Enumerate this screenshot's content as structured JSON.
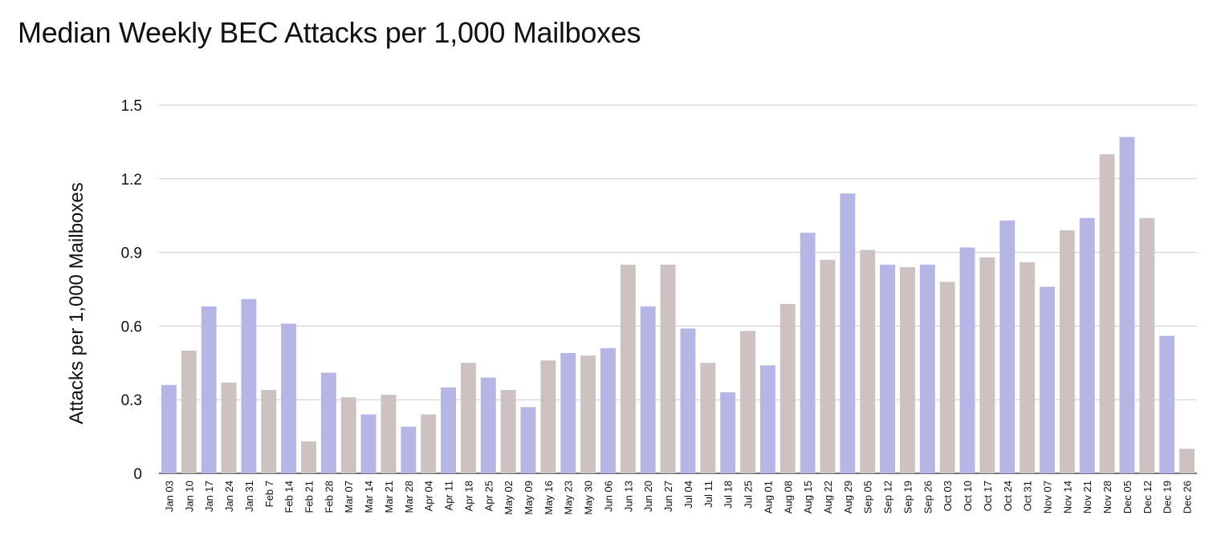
{
  "chart_data": {
    "type": "bar",
    "title": "Median Weekly BEC Attacks per 1,000 Mailboxes",
    "xlabel": "",
    "ylabel": "Attacks per 1,000 Mailboxes",
    "ylim": [
      0,
      1.5
    ],
    "yticks": [
      0,
      0.3,
      0.6,
      0.9,
      1.2,
      1.5
    ],
    "ytick_labels": [
      "0",
      "0.3",
      "0.6",
      "0.9",
      "1.2",
      "1.5"
    ],
    "grid": true,
    "legend": "none",
    "colors": [
      "#b5b5e6",
      "#cdc1c1"
    ],
    "categories": [
      "Jan 03",
      "Jan 10",
      "Jan 17",
      "Jan 24",
      "Jan 31",
      "Feb 7",
      "Feb 14",
      "Feb 21",
      "Feb 28",
      "Mar 07",
      "Mar 14",
      "Mar 21",
      "Mar 28",
      "Apr 04",
      "Apr 11",
      "Apr 18",
      "Apr 25",
      "May 02",
      "May 09",
      "May 16",
      "May 23",
      "May 30",
      "Jun 06",
      "Jun 13",
      "Jun 20",
      "Jun 27",
      "Jul 04",
      "Jul 11",
      "Jul 18",
      "Jul 25",
      "Aug 01",
      "Aug 08",
      "Aug 15",
      "Aug 22",
      "Aug 29",
      "Sep 05",
      "Sep 12",
      "Sep 19",
      "Sep 26",
      "Oct 03",
      "Oct 10",
      "Oct 17",
      "Oct 24",
      "Oct 31",
      "Nov 07",
      "Nov 14",
      "Nov 21",
      "Nov 28",
      "Dec 05",
      "Dec 12",
      "Dec 19",
      "Dec 26"
    ],
    "values": [
      0.36,
      0.5,
      0.68,
      0.37,
      0.71,
      0.34,
      0.61,
      0.13,
      0.41,
      0.31,
      0.24,
      0.32,
      0.19,
      0.24,
      0.35,
      0.45,
      0.39,
      0.34,
      0.27,
      0.46,
      0.49,
      0.48,
      0.51,
      0.85,
      0.68,
      0.85,
      0.59,
      0.45,
      0.33,
      0.58,
      0.44,
      0.69,
      0.98,
      0.87,
      1.14,
      0.91,
      0.85,
      0.84,
      0.85,
      0.78,
      0.92,
      0.88,
      1.03,
      0.86,
      0.76,
      0.99,
      1.04,
      1.3,
      1.37,
      1.04,
      0.56,
      0.1
    ],
    "bar_colors": [
      "#b5b5e6",
      "#cdc1c1",
      "#b5b5e6",
      "#cdc1c1",
      "#b5b5e6",
      "#cdc1c1",
      "#b5b5e6",
      "#cdc1c1",
      "#b5b5e6",
      "#cdc1c1",
      "#b5b5e6",
      "#cdc1c1",
      "#b5b5e6",
      "#cdc1c1",
      "#b5b5e6",
      "#cdc1c1",
      "#b5b5e6",
      "#cdc1c1",
      "#b5b5e6",
      "#cdc1c1",
      "#b5b5e6",
      "#cdc1c1",
      "#b5b5e6",
      "#cdc1c1",
      "#b5b5e6",
      "#cdc1c1",
      "#b5b5e6",
      "#cdc1c1",
      "#b5b5e6",
      "#cdc1c1",
      "#b5b5e6",
      "#cdc1c1",
      "#b5b5e6",
      "#cdc1c1",
      "#b5b5e6",
      "#cdc1c1",
      "#b5b5e6",
      "#cdc1c1",
      "#b5b5e6",
      "#cdc1c1",
      "#b5b5e6",
      "#cdc1c1",
      "#b5b5e6",
      "#cdc1c1",
      "#b5b5e6",
      "#cdc1c1",
      "#b5b5e6",
      "#cdc1c1",
      "#b5b5e6",
      "#cdc1c1",
      "#b5b5e6",
      "#cdc1c1"
    ]
  }
}
